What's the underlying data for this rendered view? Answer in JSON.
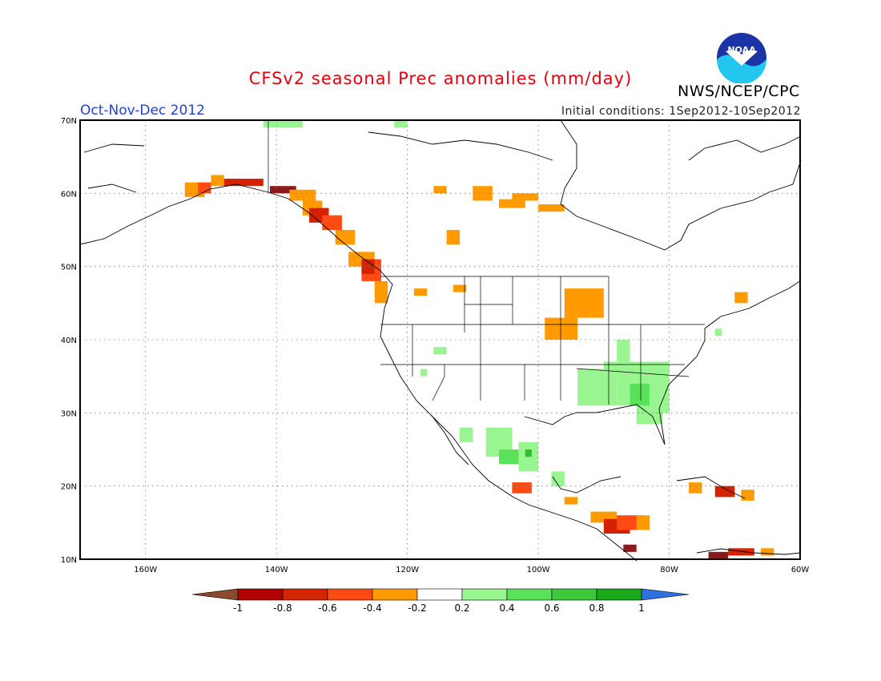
{
  "title": "CFSv2 seasonal Prec anomalies (mm/day)",
  "season": "Oct-Nov-Dec 2012",
  "initial_conditions": "Initial conditions: 1Sep2012-10Sep2012",
  "agency": "NWS/NCEP/CPC",
  "logo_text": "NOAA",
  "map": {
    "lon_range": [
      -170,
      -60
    ],
    "lat_range": [
      10,
      70
    ],
    "lon_ticks": [
      "160W",
      "140W",
      "120W",
      "100W",
      "80W",
      "60W"
    ],
    "lat_ticks": [
      "10N",
      "20N",
      "30N",
      "40N",
      "50N",
      "60N",
      "70N"
    ]
  },
  "colorbar": {
    "levels": [
      "-1",
      "-0.8",
      "-0.6",
      "-0.4",
      "-0.2",
      "0.2",
      "0.4",
      "0.6",
      "0.8",
      "1"
    ],
    "colors": [
      "#8b4a2b",
      "#b30000",
      "#d52400",
      "#ff4a14",
      "#ff9a00",
      "#ffffff",
      "#98f58f",
      "#5ae35a",
      "#3cc93c",
      "#17a91a",
      "#2f6fe0"
    ]
  },
  "colors": {
    "dry_strong": "#8b1a1a",
    "dry_red": "#d42100",
    "dry_orange_red": "#ff4a14",
    "dry_orange": "#ff9a00",
    "wet_light": "#98f58f",
    "wet_mid": "#5ae35a",
    "wet_dark": "#2fbf2f"
  }
}
